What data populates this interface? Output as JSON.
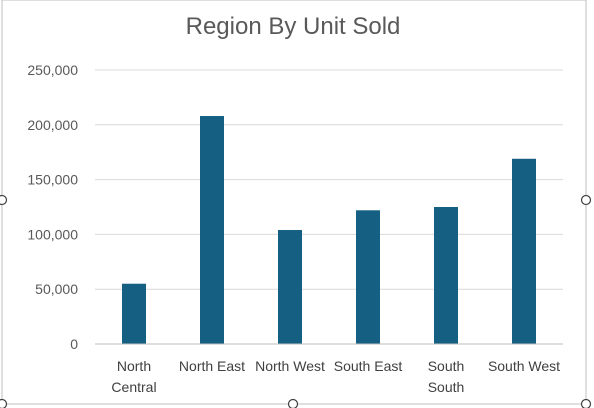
{
  "chart_data": {
    "type": "bar",
    "title": "Region By Unit Sold",
    "xlabel": "",
    "ylabel": "",
    "categories": [
      "North Central",
      "North East",
      "North West",
      "South East",
      "South South",
      "South West"
    ],
    "category_lines": [
      [
        "North",
        "Central"
      ],
      [
        "North East"
      ],
      [
        "North West"
      ],
      [
        "South East"
      ],
      [
        "South",
        "South"
      ],
      [
        "South West"
      ]
    ],
    "values": [
      55000,
      208000,
      104000,
      122000,
      125000,
      169000
    ],
    "ylim": [
      0,
      250000
    ],
    "yticks": [
      0,
      50000,
      100000,
      150000,
      200000,
      250000
    ],
    "ytick_labels": [
      "0",
      "50,000",
      "100,000",
      "150,000",
      "200,000",
      "250,000"
    ],
    "grid": true,
    "legend": "none",
    "colors": {
      "bar": "#156082",
      "gridline": "#d9d9d9",
      "axis": "#bfbfbf",
      "frame": "#bfbfbf",
      "handle": "#404040"
    }
  }
}
